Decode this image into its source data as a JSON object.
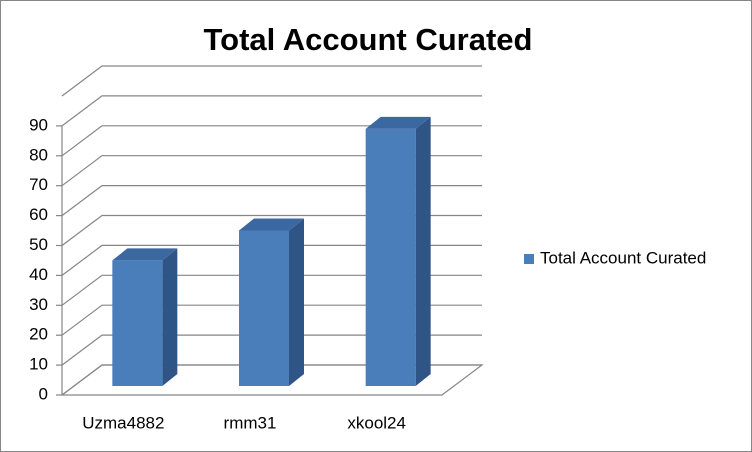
{
  "chart_data": {
    "type": "bar",
    "title": "Total Account Curated",
    "categories": [
      "Uzma4882",
      "rmm31",
      "xkool24"
    ],
    "series": [
      {
        "name": "Total Account Curated",
        "color": "#4a7ebb",
        "values": [
          42,
          52,
          86
        ]
      }
    ],
    "ylim": [
      0,
      100
    ],
    "yticks": [
      0,
      10,
      20,
      30,
      40,
      50,
      60,
      70,
      80,
      90
    ],
    "grid": true,
    "legend": "right"
  }
}
